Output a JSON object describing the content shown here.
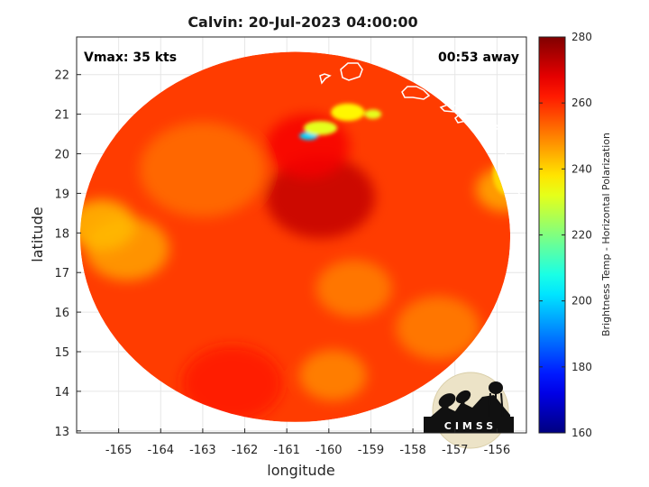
{
  "chart_data": {
    "type": "heatmap",
    "title": "Calvin: 20-Jul-2023 04:00:00",
    "xlabel": "longitude",
    "ylabel": "latitude",
    "xlim": [
      -166,
      -155.3
    ],
    "ylim": [
      12.95,
      22.95
    ],
    "x_ticks": [
      "-165",
      "-164",
      "-163",
      "-162",
      "-161",
      "-160",
      "-159",
      "-158",
      "-157",
      "-156"
    ],
    "x_tick_values": [
      -165,
      -164,
      -163,
      -162,
      -161,
      -160,
      -159,
      -158,
      -157,
      -156
    ],
    "y_ticks": [
      "13",
      "14",
      "15",
      "16",
      "17",
      "18",
      "19",
      "20",
      "21",
      "22"
    ],
    "y_tick_values": [
      13,
      14,
      15,
      16,
      17,
      18,
      19,
      20,
      21,
      22
    ],
    "grid": true,
    "annotations": {
      "vmax": "Vmax: 35 kts",
      "away": "00:53 away"
    },
    "swath": {
      "center_lon": -160.8,
      "center_lat": 17.9,
      "radius_deg": 5.5
    },
    "colorbar": {
      "label": "Brightness Temp - Horizontal Polarization",
      "range": [
        160,
        280
      ],
      "ticks": [
        "160",
        "180",
        "200",
        "220",
        "240",
        "260",
        "280"
      ],
      "tick_values": [
        160,
        180,
        200,
        220,
        240,
        260,
        280
      ],
      "colormap": "jet"
    },
    "field": {
      "background_value": 258,
      "features": [
        {
          "lon": -160.2,
          "lat": 18.9,
          "radius": 1.3,
          "value": 272
        },
        {
          "lon": -160.5,
          "lat": 20.2,
          "radius": 1.0,
          "value": 266
        },
        {
          "lon": -163.0,
          "lat": 19.6,
          "radius": 1.5,
          "value": 252
        },
        {
          "lon": -164.8,
          "lat": 17.6,
          "radius": 1.0,
          "value": 246
        },
        {
          "lon": -165.4,
          "lat": 18.2,
          "radius": 0.8,
          "value": 243
        },
        {
          "lon": -159.4,
          "lat": 16.6,
          "radius": 0.9,
          "value": 250
        },
        {
          "lon": -159.9,
          "lat": 14.4,
          "radius": 0.8,
          "value": 249
        },
        {
          "lon": -157.4,
          "lat": 15.6,
          "radius": 1.0,
          "value": 250
        },
        {
          "lon": -155.8,
          "lat": 19.1,
          "radius": 0.7,
          "value": 245
        },
        {
          "lon": -162.3,
          "lat": 14.2,
          "radius": 1.2,
          "value": 262
        }
      ],
      "land": [
        {
          "lon": -160.48,
          "lat": 20.45,
          "rx": 0.22,
          "ry": 0.1,
          "value": 200
        },
        {
          "lon": -160.2,
          "lat": 20.65,
          "rx": 0.4,
          "ry": 0.18,
          "value": 232
        },
        {
          "lon": -159.55,
          "lat": 21.05,
          "rx": 0.4,
          "ry": 0.22,
          "value": 236
        },
        {
          "lon": -158.95,
          "lat": 21.0,
          "rx": 0.2,
          "ry": 0.12,
          "value": 232
        },
        {
          "lon": -155.75,
          "lat": 19.5,
          "rx": 0.35,
          "ry": 0.55,
          "value": 240
        }
      ]
    }
  },
  "logo": {
    "text": "CIMSS"
  }
}
